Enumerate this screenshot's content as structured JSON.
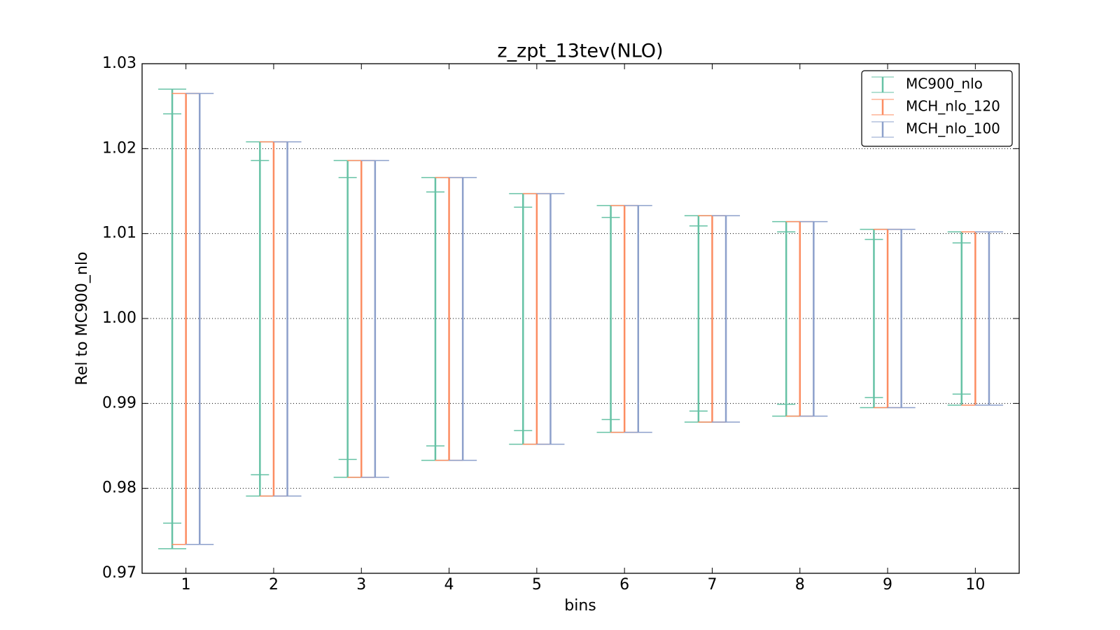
{
  "chart_data": {
    "type": "errorbar",
    "title": "z_zpt_13tev(NLO)",
    "x_label": "bins",
    "y_label": "Rel to MC900_nlo",
    "x": [
      1,
      2,
      3,
      4,
      5,
      6,
      7,
      8,
      9,
      10
    ],
    "xlim": [
      0.5,
      10.5
    ],
    "xticks": [
      1,
      2,
      3,
      4,
      5,
      6,
      7,
      8,
      9,
      10
    ],
    "ylim": [
      0.97,
      1.03
    ],
    "yticks": [
      1.03,
      1.02,
      1.01,
      {
        "value": 1.0,
        "label": "1.00"
      },
      0.99,
      0.98,
      0.97
    ],
    "grid": true,
    "legend": "upper right",
    "series": [
      {
        "name": "MC900_nlo",
        "color": "#66c2a5",
        "high": [
          1.027,
          1.0208,
          1.0186,
          1.0166,
          1.0147,
          1.0133,
          1.0121,
          1.0114,
          1.0105,
          1.0102
        ],
        "low": [
          0.9729,
          0.9791,
          0.9813,
          0.9833,
          0.9852,
          0.9866,
          0.9878,
          0.9885,
          0.9895,
          0.9898
        ],
        "inner_high": [
          1.0241,
          1.0186,
          1.0166,
          1.0149,
          1.0131,
          1.0119,
          1.0109,
          1.0102,
          1.0093,
          1.0089
        ],
        "inner_low": [
          0.9759,
          0.9816,
          0.9834,
          0.985,
          0.9868,
          0.9881,
          0.9891,
          0.9899,
          0.9907,
          0.9911
        ]
      },
      {
        "name": "MCH_nlo_120",
        "color": "#fc8d62",
        "high": [
          1.0265,
          1.0208,
          1.0186,
          1.0166,
          1.0147,
          1.0133,
          1.0121,
          1.0114,
          1.0105,
          1.0102
        ],
        "low": [
          0.9734,
          0.9791,
          0.9813,
          0.9833,
          0.9852,
          0.9866,
          0.9878,
          0.9885,
          0.9895,
          0.9898
        ]
      },
      {
        "name": "MCH_nlo_100",
        "color": "#8da0cb",
        "high": [
          1.0265,
          1.0208,
          1.0186,
          1.0166,
          1.0147,
          1.0133,
          1.0121,
          1.0114,
          1.0105,
          1.0102
        ],
        "low": [
          0.9734,
          0.9791,
          0.9813,
          0.9833,
          0.9852,
          0.9866,
          0.9878,
          0.9885,
          0.9895,
          0.9898
        ]
      }
    ]
  }
}
